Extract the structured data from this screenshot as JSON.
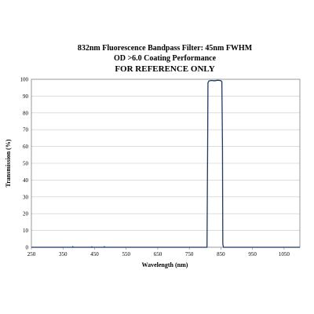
{
  "chart_data": {
    "type": "line",
    "title_lines": [
      "832nm Fluorescence Bandpass Filter: 45nm FWHM",
      "OD >6.0 Coating Performance",
      "FOR REFERENCE ONLY"
    ],
    "xlabel": "Wavelength (nm)",
    "ylabel": "Transmission (%)",
    "xlim": [
      250,
      1100
    ],
    "ylim": [
      0,
      100
    ],
    "xticks": [
      250,
      350,
      450,
      550,
      650,
      750,
      850,
      950,
      1050
    ],
    "yticks": [
      0,
      10,
      20,
      30,
      40,
      50,
      60,
      70,
      80,
      90,
      100
    ],
    "grid": "horizontal",
    "line_color": "#1f3864",
    "series": [
      {
        "x": [
          250,
          350,
          380,
          381,
          382,
          440,
          441,
          442,
          480,
          481,
          482,
          700,
          806,
          808,
          809,
          812,
          820,
          830,
          840,
          850,
          853,
          855,
          856,
          858,
          900,
          1000,
          1100
        ],
        "y": [
          0,
          0,
          0,
          0.4,
          0,
          0,
          0.3,
          0,
          0,
          0.4,
          0,
          0,
          0,
          60,
          98,
          99,
          99.3,
          99.1,
          99.4,
          99.2,
          98.5,
          60,
          2,
          0,
          0,
          0,
          0
        ]
      }
    ]
  }
}
